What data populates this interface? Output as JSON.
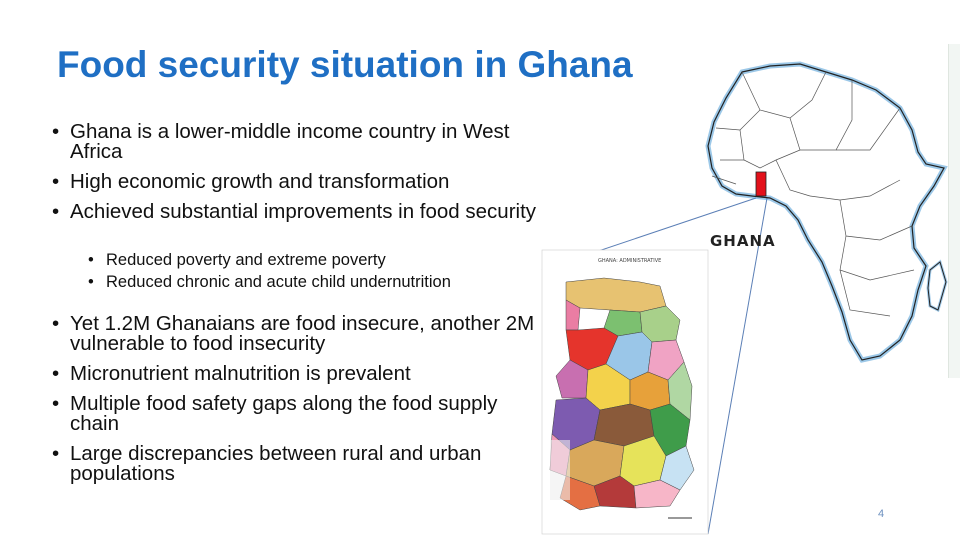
{
  "slide": {
    "title": "Food security situation in Ghana",
    "page_number": "4",
    "map_label": "GHANA",
    "bullets_top": [
      "Ghana is a lower-middle income country in West Africa",
      "High economic growth and transformation",
      "Achieved substantial improvements in food security"
    ],
    "sub_bullets": [
      "Reduced poverty and extreme poverty",
      "Reduced chronic and acute child undernutrition"
    ],
    "bullets_bottom": [
      "Yet 1.2M Ghanaians are food insecure, another 2M vulnerable to food insecurity",
      "Micronutrient malnutrition is prevalent",
      "Multiple food safety gaps along the food supply chain",
      "Large discrepancies between rural and urban populations"
    ],
    "colors": {
      "title": "#1f6fc4",
      "africa_glow": "#4a9ad6",
      "ghana_highlight": "#e3111b",
      "connector": "#5b7fb6"
    }
  }
}
